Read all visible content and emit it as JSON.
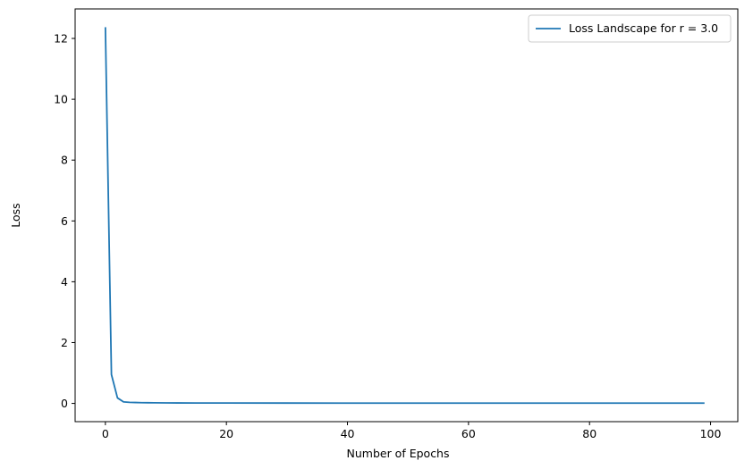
{
  "chart_data": {
    "type": "line",
    "title": "",
    "xlabel": "Number of Epochs",
    "ylabel": "Loss",
    "xlim": [
      -5,
      104.5
    ],
    "ylim": [
      -0.6,
      12.97
    ],
    "xticks": [
      0,
      20,
      40,
      60,
      80,
      100
    ],
    "yticks": [
      0,
      2,
      4,
      6,
      8,
      10,
      12
    ],
    "grid": false,
    "legend_position": "top-right",
    "series": [
      {
        "name": "Loss Landscape for r = 3.0",
        "color": "#1f77b4",
        "x": [
          0,
          1,
          2,
          3,
          4,
          5,
          6,
          7,
          8,
          10,
          12,
          15,
          20,
          30,
          40,
          50,
          60,
          70,
          80,
          90,
          99
        ],
        "y": [
          12.37,
          0.95,
          0.18,
          0.05,
          0.035,
          0.03,
          0.025,
          0.022,
          0.02,
          0.017,
          0.015,
          0.013,
          0.012,
          0.011,
          0.01,
          0.01,
          0.01,
          0.01,
          0.01,
          0.01,
          0.01
        ]
      }
    ]
  }
}
